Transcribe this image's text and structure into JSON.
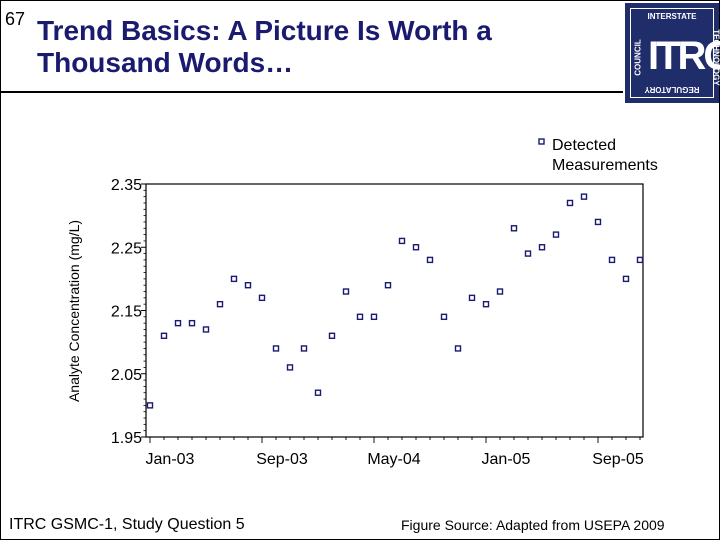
{
  "slide": {
    "number": "67",
    "title_line1": "Trend Basics: A Picture Is Worth a",
    "title_line2": "Thousand Words…",
    "footer_left": "ITRC GSMC-1, Study Question 5",
    "footer_right": "Figure Source: Adapted from USEPA 2009"
  },
  "logo": {
    "main": "ITRC",
    "top": "INTERSTATE",
    "left": "COUNCIL",
    "right": "TECHNOLOGY",
    "bottom": "REGULATORY",
    "color": "#1f2d6b"
  },
  "chart_data": {
    "type": "scatter",
    "ylabel": "Analyte Concentration (mg/L)",
    "ylim": [
      1.95,
      2.35
    ],
    "yticks": [
      "1.95",
      "2.05",
      "2.15",
      "2.25",
      "2.35"
    ],
    "xticks": [
      "Jan-03",
      "Sep-03",
      "May-04",
      "Jan-05",
      "Sep-05"
    ],
    "x_unit": "months since Jan-03",
    "legend": {
      "label_line1": "Detected",
      "label_line2": "Measurements",
      "placement": "top-right"
    },
    "marker_color": "#1a1a6e",
    "series": [
      {
        "name": "Detected Measurements",
        "x": [
          0,
          1,
          2,
          3,
          4,
          5,
          6,
          7,
          8,
          9,
          10,
          11,
          12,
          13,
          14,
          15,
          16,
          17,
          18,
          19,
          20,
          21,
          22,
          23,
          24,
          25,
          26,
          27,
          28,
          29,
          30,
          31,
          32,
          33,
          34,
          35
        ],
        "y": [
          2.0,
          2.11,
          2.13,
          2.13,
          2.12,
          2.16,
          2.2,
          2.19,
          2.17,
          2.09,
          2.06,
          2.09,
          2.02,
          2.11,
          2.18,
          2.14,
          2.14,
          2.19,
          2.26,
          2.25,
          2.23,
          2.14,
          2.09,
          2.17,
          2.16,
          2.18,
          2.28,
          2.24,
          2.25,
          2.27,
          2.32,
          2.33,
          2.29,
          2.23,
          2.2,
          2.23
        ]
      }
    ]
  }
}
